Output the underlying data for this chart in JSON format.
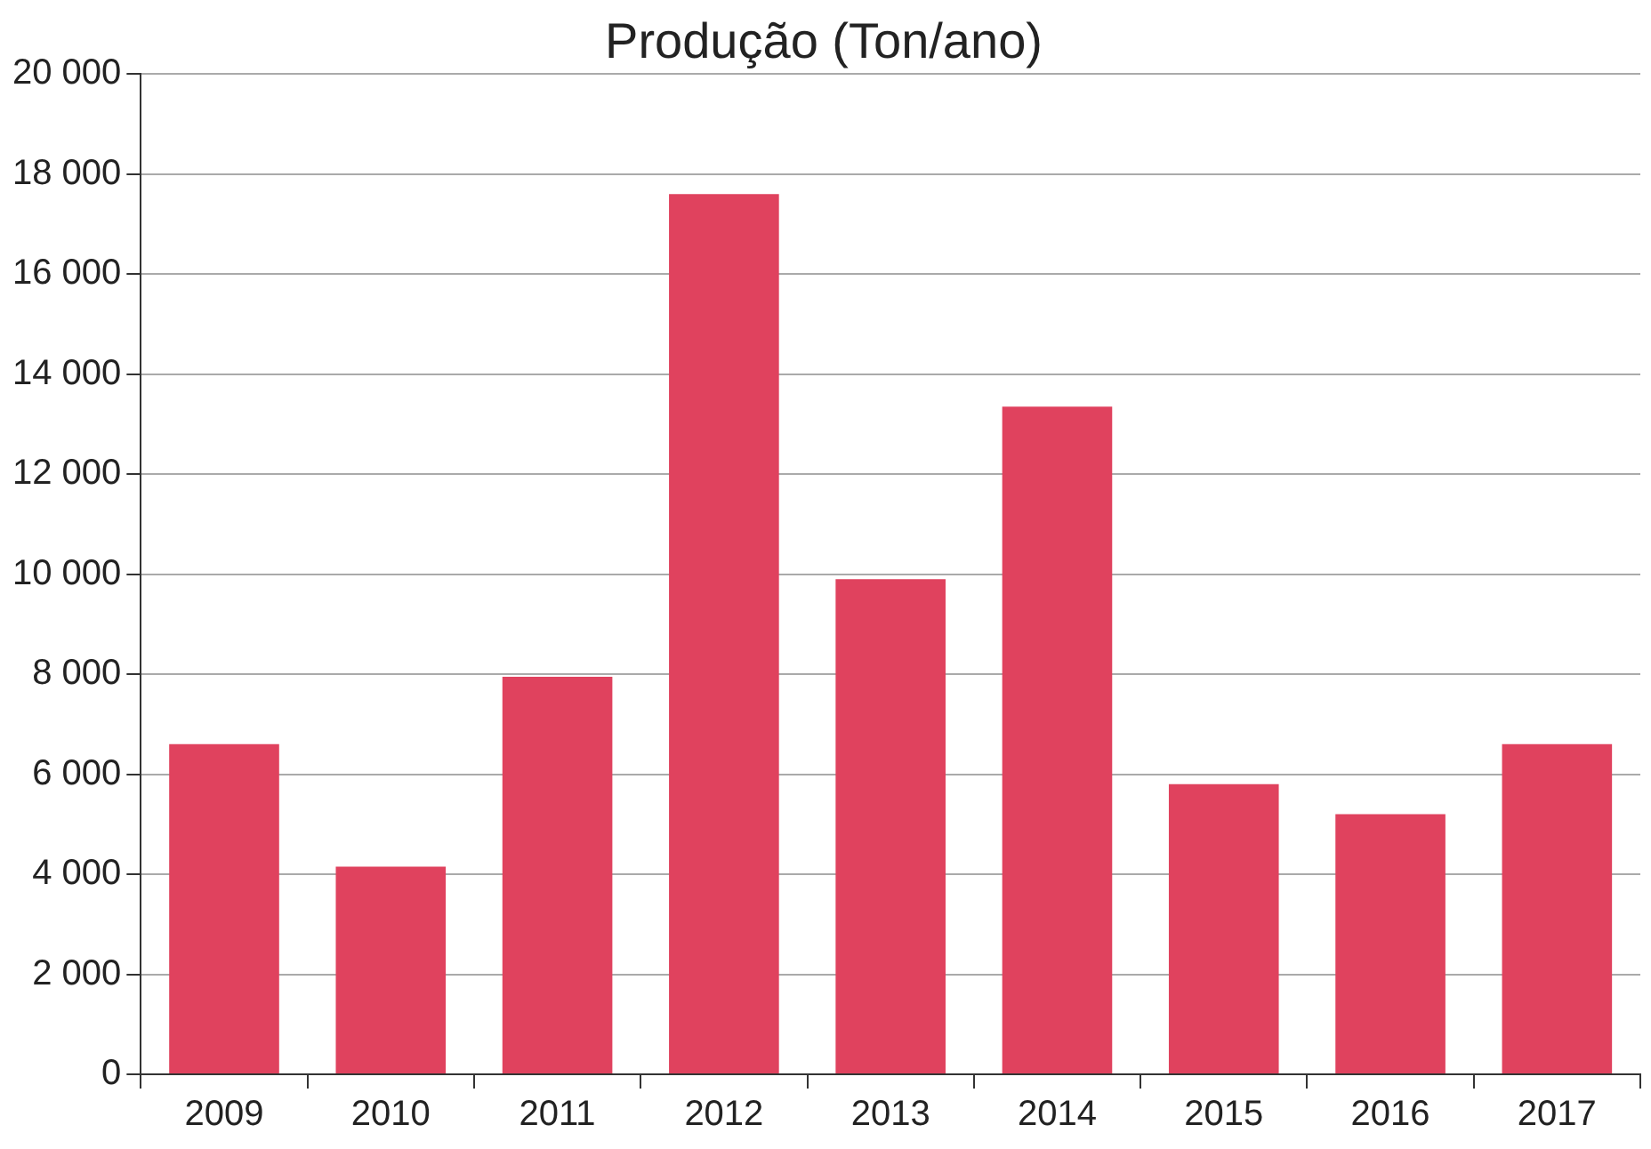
{
  "chart_data": {
    "type": "bar",
    "title": "Produção (Ton/ano)",
    "categories": [
      "2009",
      "2010",
      "2011",
      "2012",
      "2013",
      "2014",
      "2015",
      "2016",
      "2017"
    ],
    "values": [
      6600,
      4150,
      7950,
      17600,
      9900,
      13350,
      5800,
      5200,
      6600
    ],
    "color": "#e0425e",
    "ylim": [
      0,
      20000
    ],
    "yticks": [
      0,
      {
        "value": 2000,
        "label": "2 000"
      },
      {
        "value": 4000,
        "label": "4 000"
      },
      {
        "value": 6000,
        "label": "6 000"
      },
      {
        "value": 8000,
        "label": "8 000"
      },
      {
        "value": 10000,
        "label": "10 000"
      },
      {
        "value": 12000,
        "label": "12 000"
      },
      {
        "value": 14000,
        "label": "14 000"
      },
      {
        "value": 16000,
        "label": "16 000"
      },
      {
        "value": 18000,
        "label": "18 000"
      },
      {
        "value": 20000,
        "label": "20 000"
      }
    ],
    "grid": "y",
    "legend": false
  }
}
